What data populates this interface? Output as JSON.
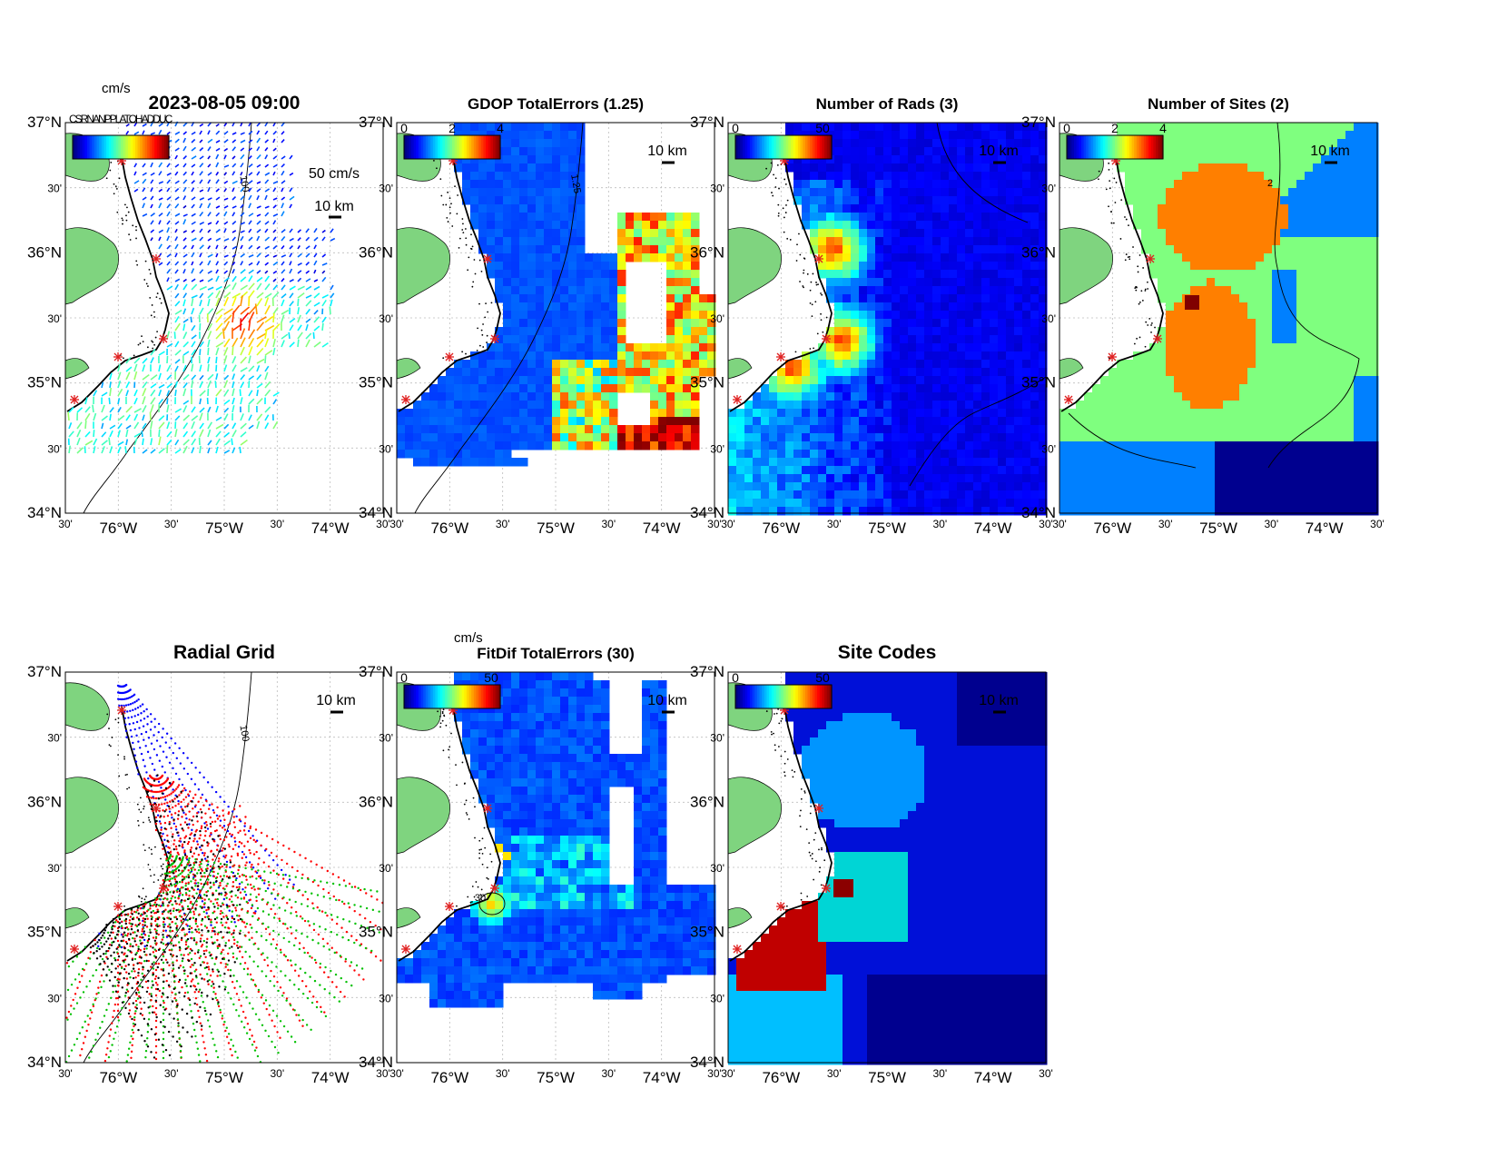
{
  "panels": [
    {
      "id": "p1",
      "title": "2023-08-05 09:00",
      "type": "vectors",
      "colorbar_ticks": [],
      "colorbar_unit": "cm/s",
      "scale_label": "50 cm/s",
      "km_label": "10 km",
      "contour_label": "100",
      "overlap_text": "CSRNANPPLATOHADDUC"
    },
    {
      "id": "p2",
      "title": "GDOP TotalErrors (1.25)",
      "type": "field",
      "colorbar_ticks": [
        "0",
        "2",
        "4"
      ],
      "km_label": "10 km",
      "contour_label": "1.25"
    },
    {
      "id": "p3",
      "title": "Number of Rads (3)",
      "type": "field",
      "colorbar_ticks": [
        "0",
        "50"
      ],
      "km_label": "10 km"
    },
    {
      "id": "p4",
      "title": "Number of Sites (2)",
      "type": "field",
      "colorbar_ticks": [
        "0",
        "2",
        "4"
      ],
      "km_label": "10 km",
      "contour_label": "2"
    },
    {
      "id": "p5",
      "title": "Radial Grid",
      "type": "radial",
      "colorbar_ticks": [],
      "km_label": "10 km",
      "contour_label": "100"
    },
    {
      "id": "p6",
      "title": "FitDif TotalErrors (30)",
      "type": "field",
      "colorbar_ticks": [
        "0",
        "50"
      ],
      "colorbar_unit": "cm/s",
      "km_label": "10 km",
      "contour_label": "30"
    },
    {
      "id": "p7",
      "title": "Site Codes",
      "type": "field",
      "colorbar_ticks": [
        "0",
        "50"
      ],
      "km_label": "10 km"
    }
  ],
  "axes": {
    "lat_labels": [
      "37°N",
      "30'",
      "36°N",
      "30'",
      "35°N",
      "30'",
      "34°N"
    ],
    "lon_labels": [
      "30'",
      "76°W",
      "30'",
      "75°W",
      "30'",
      "74°W",
      "30'"
    ]
  },
  "colors": {
    "land": "#7fd47f",
    "coast": "#000000",
    "site_marker": "#e02020",
    "radial_sites": [
      "#0000ff",
      "#ff0000",
      "#00c000",
      "#ff0000",
      "#000000"
    ]
  }
}
